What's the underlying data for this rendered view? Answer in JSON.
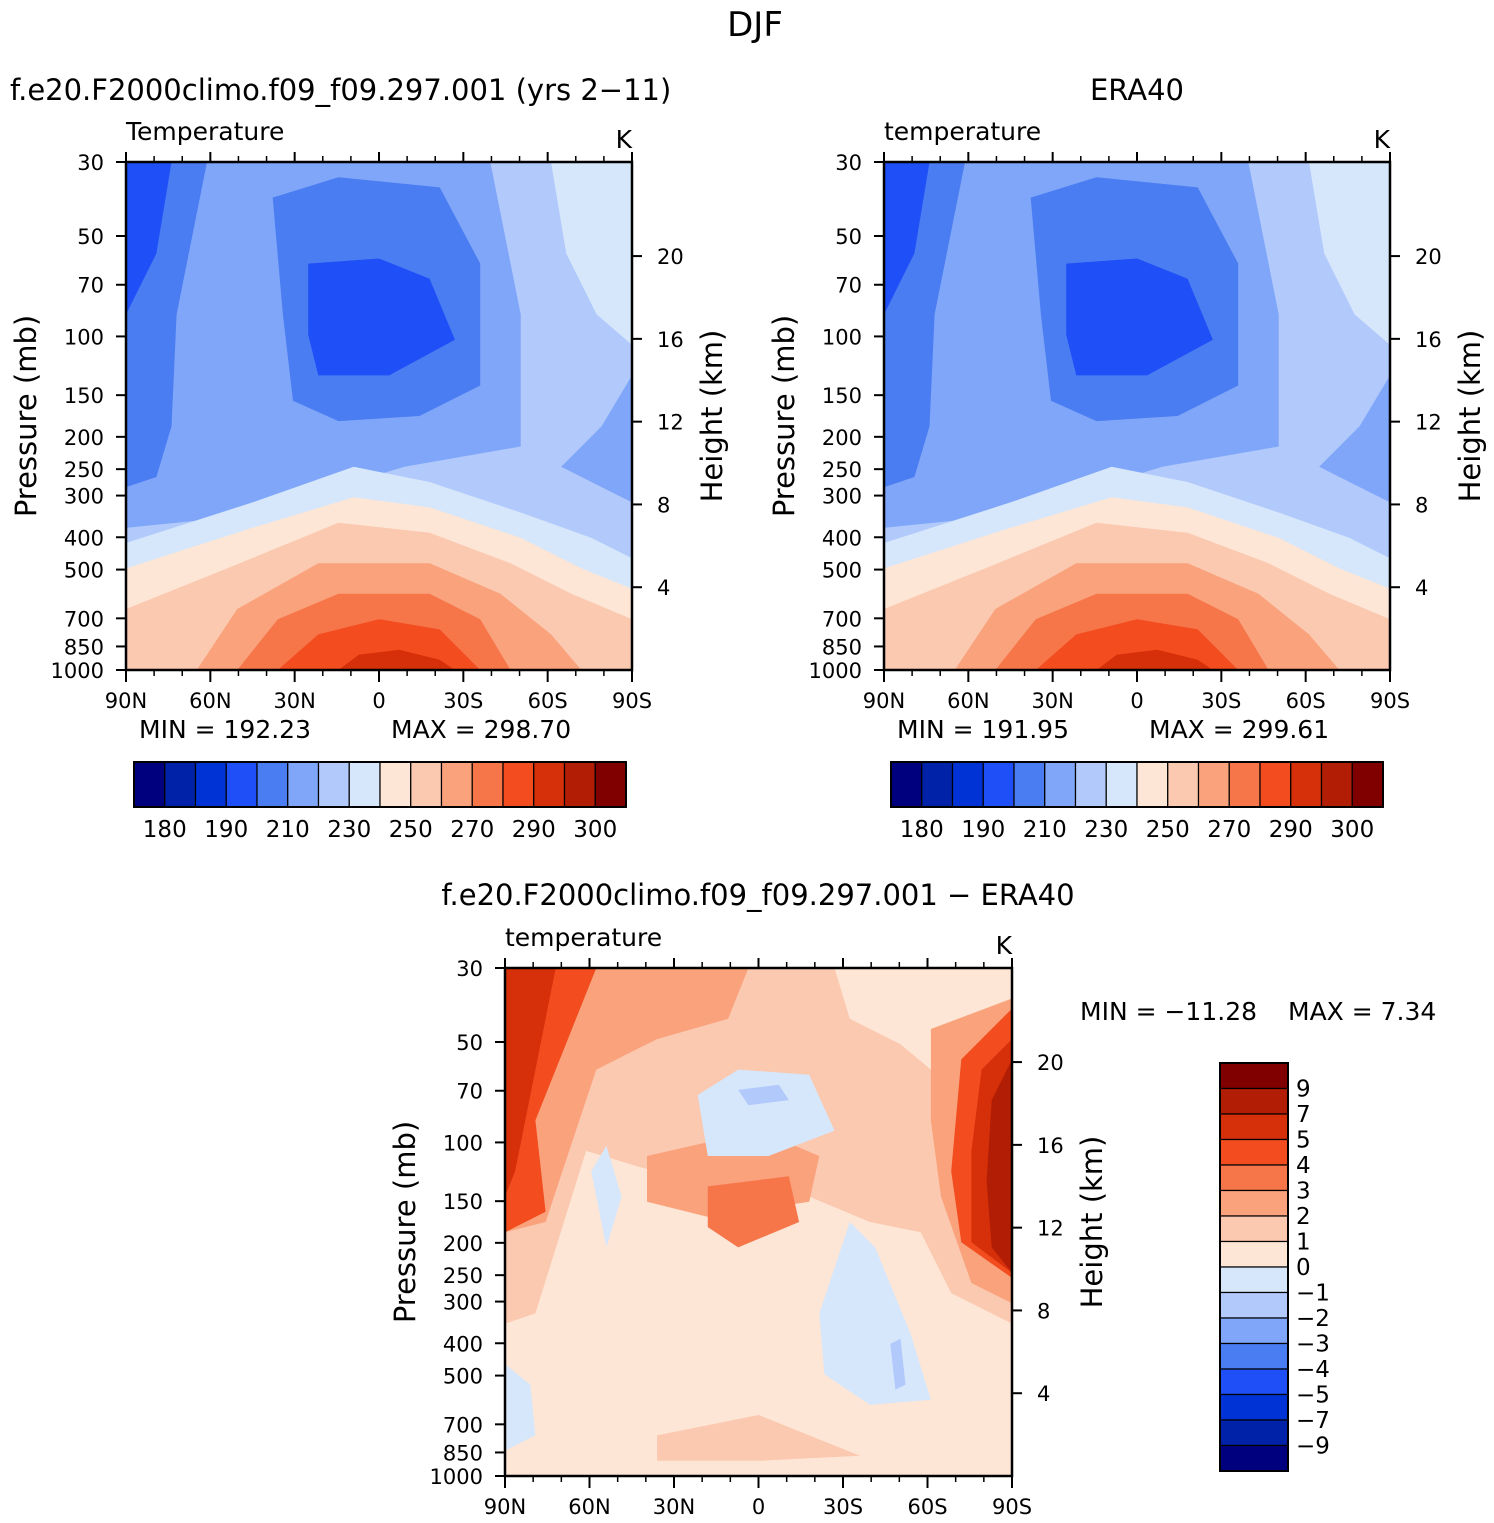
{
  "figure": {
    "main_title": "DJF"
  },
  "chart_data": [
    {
      "type": "heatmap",
      "panel_title": "f.e20.F2000climo.f09_f09.297.001 (yrs 2−11)",
      "title": "Temperature",
      "units": "K",
      "xlabel": "",
      "ylabel": "Pressure (mb)",
      "ylabel_right": "Height (km)",
      "x_ticklabels": [
        "90N",
        "60N",
        "30N",
        "0",
        "30S",
        "60S",
        "90S"
      ],
      "y_ticklabels": [
        "30",
        "50",
        "70",
        "100",
        "150",
        "200",
        "250",
        "300",
        "400",
        "500",
        "700",
        "850",
        "1000"
      ],
      "right_ticklabels": [
        "20",
        "16",
        "12",
        "8",
        "4"
      ],
      "y_scale": "log",
      "ylim": [
        1000,
        30
      ],
      "min_label": "MIN = 192.23",
      "max_label": "MAX = 298.70",
      "min": 192.23,
      "max": 298.7,
      "colorbar": {
        "orientation": "horizontal",
        "colors": [
          "#00007f",
          "#0022a8",
          "#0033d6",
          "#1f4ff6",
          "#4a7cf2",
          "#7fa6f8",
          "#b1c9fb",
          "#d6e7fb",
          "#fde6d6",
          "#fbc8b0",
          "#f9a27c",
          "#f6764a",
          "#f24c1f",
          "#d6300a",
          "#b11d05",
          "#800000"
        ],
        "tick_labels": [
          "180",
          "190",
          "210",
          "230",
          "250",
          "270",
          "290",
          "300"
        ]
      }
    },
    {
      "type": "heatmap",
      "panel_title": "ERA40",
      "title": "temperature",
      "units": "K",
      "xlabel": "",
      "ylabel": "Pressure (mb)",
      "ylabel_right": "Height (km)",
      "x_ticklabels": [
        "90N",
        "60N",
        "30N",
        "0",
        "30S",
        "60S",
        "90S"
      ],
      "y_ticklabels": [
        "30",
        "50",
        "70",
        "100",
        "150",
        "200",
        "250",
        "300",
        "400",
        "500",
        "700",
        "850",
        "1000"
      ],
      "right_ticklabels": [
        "20",
        "16",
        "12",
        "8",
        "4"
      ],
      "y_scale": "log",
      "ylim": [
        1000,
        30
      ],
      "min_label": "MIN = 191.95",
      "max_label": "MAX = 299.61",
      "min": 191.95,
      "max": 299.61,
      "colorbar": {
        "orientation": "horizontal",
        "colors": [
          "#00007f",
          "#0022a8",
          "#0033d6",
          "#1f4ff6",
          "#4a7cf2",
          "#7fa6f8",
          "#b1c9fb",
          "#d6e7fb",
          "#fde6d6",
          "#fbc8b0",
          "#f9a27c",
          "#f6764a",
          "#f24c1f",
          "#d6300a",
          "#b11d05",
          "#800000"
        ],
        "tick_labels": [
          "180",
          "190",
          "210",
          "230",
          "250",
          "270",
          "290",
          "300"
        ]
      }
    },
    {
      "type": "heatmap",
      "panel_title": "f.e20.F2000climo.f09_f09.297.001 − ERA40",
      "title": "temperature",
      "units": "K",
      "xlabel": "",
      "ylabel": "Pressure (mb)",
      "ylabel_right": "Height (km)",
      "x_ticklabels": [
        "90N",
        "60N",
        "30N",
        "0",
        "30S",
        "60S",
        "90S"
      ],
      "y_ticklabels": [
        "30",
        "50",
        "70",
        "100",
        "150",
        "200",
        "250",
        "300",
        "400",
        "500",
        "700",
        "850",
        "1000"
      ],
      "right_ticklabels": [
        "20",
        "16",
        "12",
        "8",
        "4"
      ],
      "y_scale": "log",
      "ylim": [
        1000,
        30
      ],
      "min_label": "MIN = −11.28",
      "max_label": "MAX =    7.34",
      "min": -11.28,
      "max": 7.34,
      "colorbar": {
        "orientation": "vertical",
        "colors": [
          "#800000",
          "#b11d05",
          "#d6300a",
          "#f24c1f",
          "#f6764a",
          "#f9a27c",
          "#fbc8b0",
          "#fde6d6",
          "#d6e7fb",
          "#b1c9fb",
          "#7fa6f8",
          "#4a7cf2",
          "#1f4ff6",
          "#0033d6",
          "#0022a8",
          "#00007f"
        ],
        "tick_labels": [
          "9",
          "7",
          "5",
          "4",
          "3",
          "2",
          "1",
          "0",
          "−1",
          "−2",
          "−3",
          "−4",
          "−5",
          "−7",
          "−9"
        ]
      }
    }
  ]
}
